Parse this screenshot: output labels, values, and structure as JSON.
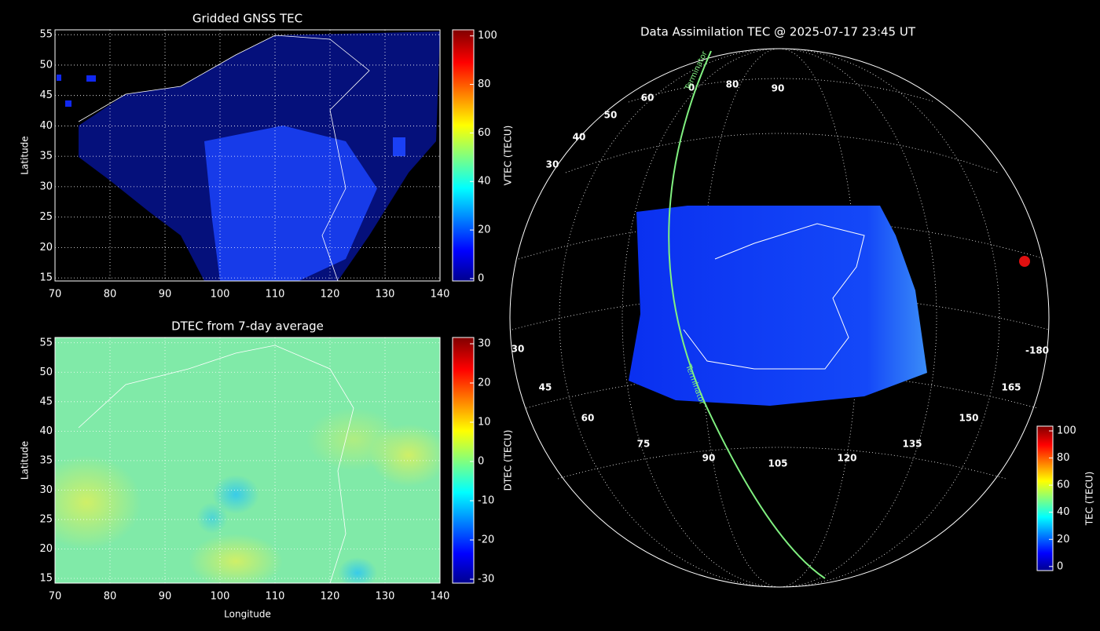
{
  "panels": [
    {
      "title": "Gridded GNSS TEC",
      "ylabel": "Latitude",
      "xlim": [
        70,
        140
      ],
      "ylim": [
        14.5,
        55.8
      ],
      "xticks": [
        70,
        80,
        90,
        100,
        110,
        120,
        130,
        140
      ],
      "yticks": [
        15,
        20,
        25,
        30,
        35,
        40,
        45,
        50,
        55
      ],
      "colorbar": {
        "label": "VTEC (TECU)",
        "lim": [
          -1,
          102.5
        ],
        "ticks": [
          0,
          20,
          40,
          60,
          80,
          100
        ]
      }
    },
    {
      "title": "DTEC from 7-day average",
      "xlabel": "Longitude",
      "ylabel": "Latitude",
      "xlim": [
        70,
        140
      ],
      "ylim": [
        14.2,
        55.9
      ],
      "xticks": [
        70,
        80,
        90,
        100,
        110,
        120,
        130,
        140
      ],
      "yticks": [
        15,
        20,
        25,
        30,
        35,
        40,
        45,
        50,
        55
      ],
      "colorbar": {
        "label": "DTEC (TECU)",
        "lim": [
          -31,
          31.6
        ],
        "ticks": [
          -30,
          -20,
          -10,
          0,
          10,
          20,
          30
        ]
      }
    }
  ],
  "globe": {
    "title": "Data Assimilation TEC @ 2025-07-17 23:45 UT",
    "grid_labels": [
      "0",
      "80",
      "90",
      "60",
      "50",
      "40",
      "30",
      "30",
      "45",
      "60",
      "75",
      "90",
      "105",
      "120",
      "135",
      "150",
      "165",
      "-180"
    ],
    "terminator_label": "Terminator",
    "colorbar": {
      "label": "TEC (TECU)",
      "lim": [
        -3,
        103.5
      ],
      "ticks": [
        0,
        20,
        40,
        60,
        80,
        100
      ]
    }
  }
}
